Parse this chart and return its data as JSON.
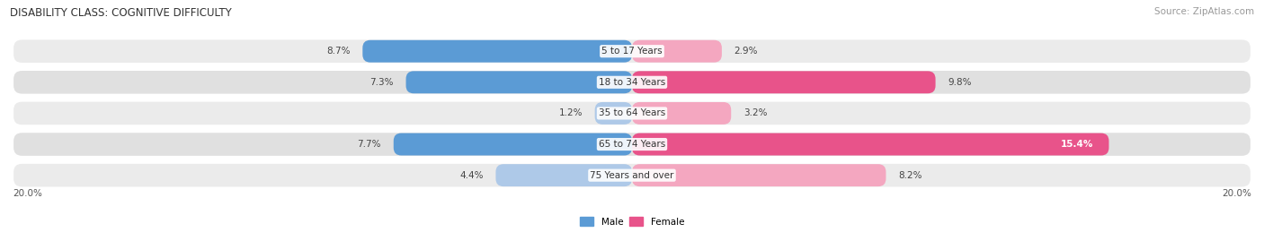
{
  "title": "DISABILITY CLASS: COGNITIVE DIFFICULTY",
  "source": "Source: ZipAtlas.com",
  "categories": [
    "5 to 17 Years",
    "18 to 34 Years",
    "35 to 64 Years",
    "65 to 74 Years",
    "75 Years and over"
  ],
  "male_values": [
    8.7,
    7.3,
    1.2,
    7.7,
    4.4
  ],
  "female_values": [
    2.9,
    9.8,
    3.2,
    15.4,
    8.2
  ],
  "male_colors": [
    "#5b9bd5",
    "#5b9bd5",
    "#aec9e8",
    "#5b9bd5",
    "#aec9e8"
  ],
  "female_colors": [
    "#f4a7c0",
    "#e8538a",
    "#f4a7c0",
    "#e8538a",
    "#f4a7c0"
  ],
  "row_bg_even": "#ebebeb",
  "row_bg_odd": "#e0e0e0",
  "max_val": 20.0,
  "male_label": "Male",
  "female_label": "Female",
  "title_fontsize": 8.5,
  "source_fontsize": 7.5,
  "label_fontsize": 7.5,
  "cat_fontsize": 7.5
}
